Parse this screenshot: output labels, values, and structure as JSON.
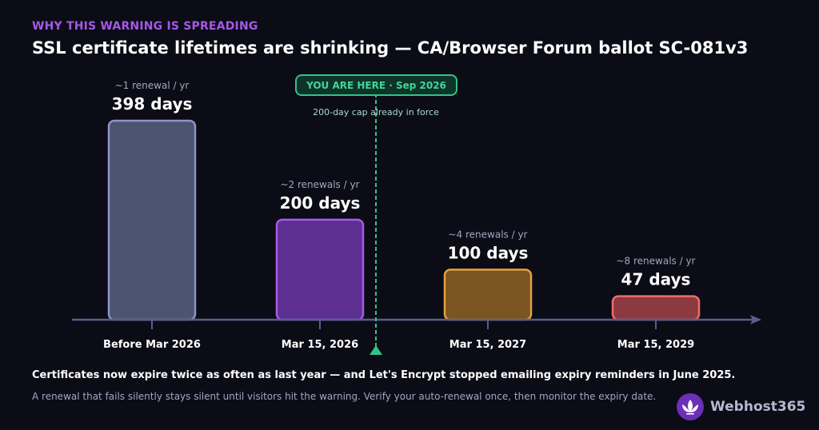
{
  "header": {
    "kicker": "WHY THIS WARNING IS SPREADING",
    "title": "SSL certificate lifetimes are shrinking — CA/Browser Forum ballot SC-081v3"
  },
  "chart_data": {
    "type": "bar",
    "categories": [
      "Before Mar 2026",
      "Mar 15, 2026",
      "Mar 15, 2027",
      "Mar 15, 2029"
    ],
    "values": [
      398,
      200,
      100,
      47
    ],
    "value_labels": [
      "398 days",
      "200 days",
      "100 days",
      "47 days"
    ],
    "renewal_labels": [
      "~1 renewal / yr",
      "~2 renewals / yr",
      "~4 renewals / yr",
      "~8 renewals / yr"
    ],
    "unit": "days",
    "ylim": [
      0,
      398
    ],
    "grid": false,
    "colors": {
      "fills": [
        "#4b5470",
        "#5c2f90",
        "#7a5522",
        "#8c3a40"
      ],
      "strokes": [
        "#8f93c8",
        "#a55bec",
        "#e6a03c",
        "#ef6b6b"
      ],
      "axis": "#585d8c",
      "marker": "#2fc48a"
    },
    "marker": {
      "label": "YOU ARE HERE · Sep 2026",
      "note": "200-day cap already in force",
      "position": "between Mar 15, 2026 and Mar 15, 2027"
    }
  },
  "footer": {
    "main": "Certificates now expire twice as often as last year — and Let's Encrypt stopped emailing expiry reminders in June 2025.",
    "sub": "A renewal that fails silently stays silent until visitors hit the warning. Verify your auto-renewal once, then monitor the expiry date."
  },
  "brand": {
    "name": "Webhost365",
    "icon": "lotus-icon",
    "color": "#6b2fb8"
  }
}
